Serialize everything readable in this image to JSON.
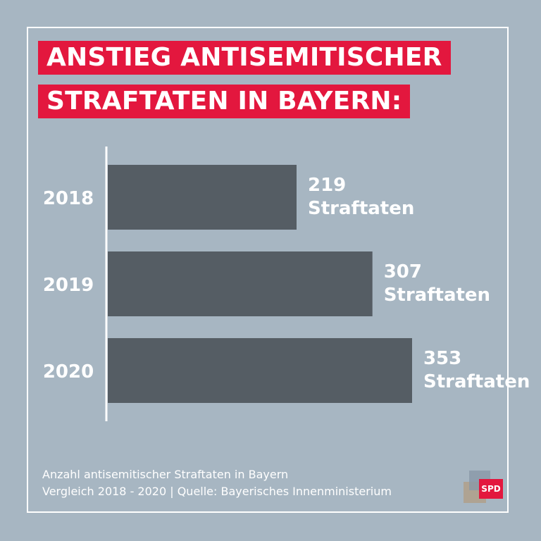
{
  "title": {
    "line1": "ANSTIEG ANTISEMITISCHER",
    "line2": "STRAFTATEN IN BAYERN:"
  },
  "chart_data": {
    "type": "bar",
    "orientation": "horizontal",
    "categories": [
      "2018",
      "2019",
      "2020"
    ],
    "values": [
      219,
      307,
      353
    ],
    "value_labels": [
      [
        "219",
        "Straftaten"
      ],
      [
        "307",
        "Straftaten"
      ],
      [
        "353",
        "Straftaten"
      ]
    ],
    "xlim": [
      0,
      400
    ],
    "bar_color": "#555d64",
    "grid": false
  },
  "footer": {
    "line1": "Anzahl antisemitischer Straftaten in Bayern",
    "line2": "Vergleich 2018 - 2020 | Quelle: Bayerisches Innenministerium"
  },
  "logo": {
    "text": "SPD"
  },
  "colors": {
    "background": "#a7b6c2",
    "accent": "#e3173e",
    "bar": "#555d64",
    "text": "#ffffff"
  }
}
